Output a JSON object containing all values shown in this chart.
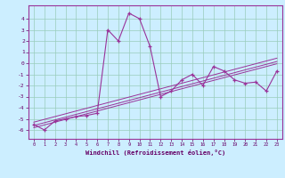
{
  "title": "",
  "xlabel": "Windchill (Refroidissement éolien,°C)",
  "bg_color": "#cceeff",
  "line_color": "#993399",
  "grid_color": "#99ccbb",
  "x_data": [
    0,
    1,
    2,
    3,
    4,
    5,
    6,
    7,
    8,
    9,
    10,
    11,
    12,
    13,
    14,
    15,
    16,
    17,
    18,
    19,
    20,
    21,
    22,
    23
  ],
  "y_main": [
    -5.5,
    -6.0,
    -5.2,
    -5.0,
    -4.8,
    -4.7,
    -4.5,
    3.0,
    2.0,
    4.5,
    4.0,
    1.5,
    -3.0,
    -2.5,
    -1.5,
    -1.0,
    -2.0,
    -0.3,
    -0.7,
    -1.5,
    -1.8,
    -1.7,
    -2.5,
    -0.7
  ],
  "y_trend1": [
    -5.8,
    -5.55,
    -5.3,
    -5.05,
    -4.8,
    -4.55,
    -4.3,
    -4.05,
    -3.8,
    -3.55,
    -3.3,
    -3.05,
    -2.8,
    -2.55,
    -2.3,
    -2.05,
    -1.8,
    -1.55,
    -1.3,
    -1.05,
    -0.8,
    -0.55,
    -0.3,
    -0.05
  ],
  "y_trend2": [
    -5.6,
    -5.35,
    -5.1,
    -4.85,
    -4.6,
    -4.35,
    -4.1,
    -3.85,
    -3.6,
    -3.35,
    -3.1,
    -2.85,
    -2.6,
    -2.35,
    -2.1,
    -1.85,
    -1.6,
    -1.35,
    -1.1,
    -0.85,
    -0.6,
    -0.35,
    -0.1,
    0.15
  ],
  "y_trend3": [
    -5.3,
    -5.05,
    -4.8,
    -4.55,
    -4.3,
    -4.05,
    -3.8,
    -3.55,
    -3.3,
    -3.05,
    -2.8,
    -2.55,
    -2.3,
    -2.05,
    -1.8,
    -1.55,
    -1.3,
    -1.05,
    -0.8,
    -0.55,
    -0.3,
    -0.05,
    0.2,
    0.45
  ],
  "ylim": [
    -6.8,
    5.2
  ],
  "xlim": [
    -0.5,
    23.5
  ],
  "yticks": [
    -6,
    -5,
    -4,
    -3,
    -2,
    -1,
    0,
    1,
    2,
    3,
    4
  ],
  "xticks": [
    0,
    1,
    2,
    3,
    4,
    5,
    6,
    7,
    8,
    9,
    10,
    11,
    12,
    13,
    14,
    15,
    16,
    17,
    18,
    19,
    20,
    21,
    22,
    23
  ],
  "figsize": [
    3.2,
    2.0
  ],
  "dpi": 100
}
